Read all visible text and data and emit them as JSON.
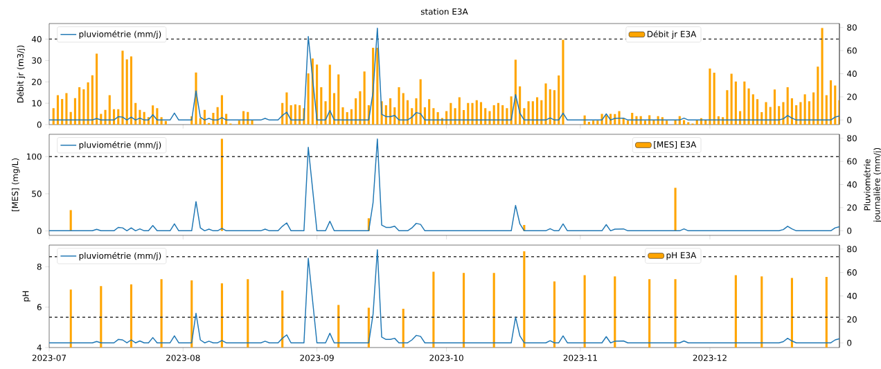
{
  "chart_data": [
    {
      "type": "bar",
      "title": "station E3A",
      "ylabel": "Débit jr (m3/j)",
      "x": [
        "2023-07-02",
        "2023-07-03",
        "2023-07-04",
        "2023-07-05",
        "2023-07-06",
        "2023-07-07",
        "2023-07-08",
        "2023-07-09",
        "2023-07-10",
        "2023-07-11",
        "2023-07-12",
        "2023-07-13",
        "2023-07-14",
        "2023-07-15",
        "2023-07-16",
        "2023-07-17",
        "2023-07-18",
        "2023-07-19",
        "2023-07-20",
        "2023-07-21",
        "2023-07-22",
        "2023-07-23",
        "2023-07-24",
        "2023-07-25",
        "2023-07-26",
        "2023-07-27",
        "2023-07-28",
        "2023-07-29",
        "2023-07-30",
        "2023-07-31",
        "2023-08-01",
        "2023-08-02",
        "2023-08-03",
        "2023-08-04",
        "2023-08-05",
        "2023-08-06",
        "2023-08-07",
        "2023-08-08",
        "2023-08-09",
        "2023-08-10",
        "2023-08-11",
        "2023-08-12",
        "2023-08-13",
        "2023-08-14",
        "2023-08-15",
        "2023-08-16",
        "2023-08-17",
        "2023-08-18",
        "2023-08-19",
        "2023-08-20",
        "2023-08-21",
        "2023-08-22",
        "2023-08-23",
        "2023-08-24",
        "2023-08-25",
        "2023-08-26",
        "2023-08-27",
        "2023-08-28",
        "2023-08-29",
        "2023-08-30",
        "2023-08-31",
        "2023-09-01",
        "2023-09-02",
        "2023-09-03",
        "2023-09-04",
        "2023-09-05",
        "2023-09-06",
        "2023-09-07",
        "2023-09-08",
        "2023-09-09",
        "2023-09-10",
        "2023-09-11",
        "2023-09-12",
        "2023-09-13",
        "2023-09-14",
        "2023-09-15",
        "2023-09-16",
        "2023-09-17",
        "2023-09-18",
        "2023-09-19",
        "2023-09-20",
        "2023-09-21",
        "2023-09-22",
        "2023-09-23",
        "2023-09-24",
        "2023-09-25",
        "2023-09-26",
        "2023-09-27",
        "2023-09-28",
        "2023-09-29",
        "2023-09-30",
        "2023-10-01",
        "2023-10-02",
        "2023-10-03",
        "2023-10-04",
        "2023-10-05",
        "2023-10-06",
        "2023-10-07",
        "2023-10-08",
        "2023-10-09",
        "2023-10-10",
        "2023-10-11",
        "2023-10-12",
        "2023-10-13",
        "2023-10-14",
        "2023-10-15",
        "2023-10-16",
        "2023-10-17",
        "2023-10-18",
        "2023-10-19",
        "2023-10-20",
        "2023-10-21",
        "2023-10-22",
        "2023-10-23",
        "2023-10-24",
        "2023-10-25",
        "2023-10-26",
        "2023-10-27",
        "2023-10-28",
        "2023-10-29",
        "2023-10-30",
        "2023-10-31",
        "2023-11-01",
        "2023-11-02",
        "2023-11-03",
        "2023-11-04",
        "2023-11-05",
        "2023-11-06",
        "2023-11-07",
        "2023-11-08",
        "2023-11-09",
        "2023-11-10",
        "2023-11-11",
        "2023-11-12",
        "2023-11-13",
        "2023-11-14",
        "2023-11-15",
        "2023-11-16",
        "2023-11-17",
        "2023-11-18",
        "2023-11-19",
        "2023-11-20",
        "2023-11-21",
        "2023-11-22",
        "2023-11-23",
        "2023-11-24",
        "2023-11-25",
        "2023-11-26",
        "2023-11-27",
        "2023-11-28",
        "2023-11-29",
        "2023-11-30",
        "2023-12-01",
        "2023-12-02",
        "2023-12-03",
        "2023-12-04",
        "2023-12-05",
        "2023-12-06",
        "2023-12-07",
        "2023-12-08",
        "2023-12-09",
        "2023-12-10",
        "2023-12-11",
        "2023-12-12",
        "2023-12-13",
        "2023-12-14",
        "2023-12-15",
        "2023-12-16",
        "2023-12-17",
        "2023-12-18",
        "2023-12-19",
        "2023-12-20",
        "2023-12-21",
        "2023-12-22",
        "2023-12-23",
        "2023-12-24",
        "2023-12-25",
        "2023-12-26",
        "2023-12-27",
        "2023-12-28",
        "2023-12-29",
        "2023-12-30",
        "2023-12-31"
      ],
      "series": [
        {
          "name": "Débit jr E3A",
          "color": "#ffa500",
          "values": [
            7.7,
            13.8,
            12.0,
            14.7,
            5.9,
            12.4,
            17.5,
            16.5,
            19.8,
            23.1,
            33.2,
            5.0,
            6.9,
            13.8,
            7.2,
            7.2,
            34.6,
            30.5,
            31.9,
            10.1,
            6.9,
            5.9,
            3.5,
            9.0,
            7.7,
            3.5,
            1.7,
            null,
            null,
            null,
            null,
            null,
            3.9,
            24.4,
            3.0,
            6.9,
            0.7,
            5.5,
            8.2,
            13.8,
            5.0,
            0.5,
            null,
            1.9,
            6.3,
            5.9,
            2.1,
            null,
            null,
            null,
            null,
            null,
            null,
            10.1,
            15.1,
            9.1,
            9.5,
            9.1,
            7.7,
            24.0,
            30.9,
            28.1,
            17.5,
            10.9,
            28.0,
            14.7,
            23.5,
            8.1,
            5.8,
            7.2,
            12.3,
            15.6,
            24.9,
            9.1,
            36.0,
            36.0,
            10.9,
            9.1,
            12.3,
            8.1,
            17.5,
            14.7,
            11.4,
            7.7,
            12.3,
            21.2,
            8.1,
            11.9,
            7.7,
            5.8,
            3.1,
            6.3,
            10.1,
            7.7,
            12.8,
            6.8,
            10.1,
            10.1,
            11.4,
            10.5,
            7.7,
            6.3,
            9.1,
            10.1,
            9.1,
            7.7,
            13.2,
            30.4,
            17.9,
            7.7,
            10.9,
            10.9,
            12.8,
            11.4,
            19.3,
            16.5,
            16.1,
            23.0,
            39.7,
            null,
            null,
            null,
            null,
            4.3,
            1.3,
            1.9,
            1.9,
            5.0,
            4.4,
            5.0,
            4.9,
            6.3,
            3.0,
            1.9,
            5.5,
            4.0,
            4.0,
            1.9,
            4.4,
            2.1,
            4.0,
            3.5,
            1.9,
            null,
            2.0,
            4.0,
            2.1,
            1.1,
            0.5,
            2.1,
            3.0,
            2.1,
            26.2,
            24.3,
            3.9,
            3.5,
            16.1,
            23.8,
            20.2,
            6.3,
            20.2,
            16.9,
            14.2,
            11.9,
            5.8,
            10.5,
            8.3,
            16.4,
            8.7,
            10.5,
            17.5,
            12.3,
            9.1,
            10.5,
            14.2,
            10.9,
            15.1,
            27.1,
            45.3,
            13.8,
            20.7,
            18.3,
            11.4
          ]
        },
        {
          "name": "pluviométrie (mm/j)",
          "type": "line",
          "axis": "y2",
          "color": "#1f77b4",
          "x": [
            "2023-07-01",
            "2023-07-11",
            "2023-07-12",
            "2023-07-13",
            "2023-07-16",
            "2023-07-17",
            "2023-07-18",
            "2023-07-19",
            "2023-07-20",
            "2023-07-21",
            "2023-07-22",
            "2023-07-23",
            "2023-07-24",
            "2023-07-25",
            "2023-07-26",
            "2023-07-29",
            "2023-07-30",
            "2023-07-31",
            "2023-08-03",
            "2023-08-04",
            "2023-08-05",
            "2023-08-06",
            "2023-08-07",
            "2023-08-08",
            "2023-08-09",
            "2023-08-10",
            "2023-08-11",
            "2023-08-19",
            "2023-08-20",
            "2023-08-21",
            "2023-08-23",
            "2023-08-24",
            "2023-08-25",
            "2023-08-26",
            "2023-08-29",
            "2023-08-30",
            "2023-08-31",
            "2023-09-01",
            "2023-09-03",
            "2023-09-04",
            "2023-09-05",
            "2023-09-13",
            "2023-09-14",
            "2023-09-15",
            "2023-09-16",
            "2023-09-17",
            "2023-09-18",
            "2023-09-19",
            "2023-09-20",
            "2023-09-22",
            "2023-09-23",
            "2023-09-24",
            "2023-09-25",
            "2023-09-26",
            "2023-10-16",
            "2023-10-17",
            "2023-10-18",
            "2023-10-19",
            "2023-10-24",
            "2023-10-25",
            "2023-10-26",
            "2023-10-27",
            "2023-10-28",
            "2023-10-29",
            "2023-11-06",
            "2023-11-07",
            "2023-11-08",
            "2023-11-09",
            "2023-11-11",
            "2023-11-12",
            "2023-11-24",
            "2023-11-25",
            "2023-11-26",
            "2023-12-17",
            "2023-12-18",
            "2023-12-19",
            "2023-12-20",
            "2023-12-21",
            "2023-12-29",
            "2023-12-30",
            "2023-12-31"
          ],
          "values": [
            0,
            0,
            1.2,
            0,
            0,
            2.9,
            2.5,
            0,
            2.5,
            0,
            1.6,
            0,
            0,
            4.5,
            0,
            0,
            6,
            0,
            0,
            25.2,
            2.5,
            0,
            1.4,
            0,
            0,
            2,
            0,
            0,
            1.4,
            0,
            0,
            3.9,
            6.8,
            0,
            0,
            72.2,
            36,
            0,
            0,
            8.2,
            0,
            0,
            24.4,
            79.4,
            4.9,
            2.9,
            2.9,
            3.9,
            0,
            0,
            2.5,
            6.4,
            5.5,
            0,
            0,
            21.9,
            5.9,
            0,
            0,
            1.8,
            0,
            0,
            5.9,
            0,
            0,
            5.3,
            0,
            1.4,
            1.6,
            0,
            0,
            1.6,
            0,
            0,
            1,
            3.9,
            1.6,
            0,
            0,
            2.5,
            3.5
          ]
        }
      ],
      "xlim": [
        "2023-07-01",
        "2023-12-31"
      ],
      "xticks": [
        "2023-07",
        "2023-08",
        "2023-09",
        "2023-10",
        "2023-11",
        "2023-12"
      ],
      "ylim": [
        0,
        47.3
      ],
      "yticks": [
        0,
        10,
        20,
        30,
        40
      ],
      "y2lim": [
        -4,
        83.4
      ],
      "y2ticks": [
        0,
        20,
        40,
        60,
        80
      ],
      "ref_lines": [
        {
          "axis": "y",
          "value": 40,
          "color": "#333333",
          "line_style": "dashed"
        }
      ],
      "legend": "top left",
      "tick_labels": "y"
    },
    {
      "type": "bar",
      "ylabel": "[MES] (mg/L)",
      "y2label": "Pluviométrie journalière (mm/j)",
      "series": [
        {
          "name": "[MES] E3A",
          "color": "#ffa500",
          "x": [
            "2023-07-06",
            "2023-08-10",
            "2023-09-13",
            "2023-10-19",
            "2023-11-23"
          ],
          "values": [
            28,
            124,
            17,
            8,
            58
          ]
        },
        {
          "name": "pluviométrie (mm/j)",
          "type": "line",
          "axis": "y2",
          "color": "#1f77b4",
          "x": [
            "2023-07-01",
            "2023-07-11",
            "2023-07-12",
            "2023-07-13",
            "2023-07-16",
            "2023-07-17",
            "2023-07-18",
            "2023-07-19",
            "2023-07-20",
            "2023-07-21",
            "2023-07-22",
            "2023-07-23",
            "2023-07-24",
            "2023-07-25",
            "2023-07-26",
            "2023-07-29",
            "2023-07-30",
            "2023-07-31",
            "2023-08-03",
            "2023-08-04",
            "2023-08-05",
            "2023-08-06",
            "2023-08-07",
            "2023-08-08",
            "2023-08-09",
            "2023-08-10",
            "2023-08-11",
            "2023-08-19",
            "2023-08-20",
            "2023-08-21",
            "2023-08-23",
            "2023-08-24",
            "2023-08-25",
            "2023-08-26",
            "2023-08-29",
            "2023-08-30",
            "2023-08-31",
            "2023-09-01",
            "2023-09-03",
            "2023-09-04",
            "2023-09-05",
            "2023-09-13",
            "2023-09-14",
            "2023-09-15",
            "2023-09-16",
            "2023-09-17",
            "2023-09-18",
            "2023-09-19",
            "2023-09-20",
            "2023-09-22",
            "2023-09-23",
            "2023-09-24",
            "2023-09-25",
            "2023-09-26",
            "2023-10-16",
            "2023-10-17",
            "2023-10-18",
            "2023-10-19",
            "2023-10-24",
            "2023-10-25",
            "2023-10-26",
            "2023-10-27",
            "2023-10-28",
            "2023-10-29",
            "2023-11-06",
            "2023-11-07",
            "2023-11-08",
            "2023-11-09",
            "2023-11-11",
            "2023-11-12",
            "2023-11-24",
            "2023-11-25",
            "2023-11-26",
            "2023-12-17",
            "2023-12-18",
            "2023-12-19",
            "2023-12-20",
            "2023-12-21",
            "2023-12-29",
            "2023-12-30",
            "2023-12-31"
          ],
          "values": [
            0,
            0,
            1.2,
            0,
            0,
            2.9,
            2.5,
            0,
            2.5,
            0,
            1.6,
            0,
            0,
            4.5,
            0,
            0,
            6,
            0,
            0,
            25.2,
            2.5,
            0,
            1.4,
            0,
            0,
            2,
            0,
            0,
            1.4,
            0,
            0,
            3.9,
            6.8,
            0,
            0,
            72.2,
            36,
            0,
            0,
            8.2,
            0,
            0,
            24.4,
            79.4,
            4.9,
            2.9,
            2.9,
            3.9,
            0,
            0,
            2.5,
            6.4,
            5.5,
            0,
            0,
            21.9,
            5.9,
            0,
            0,
            1.8,
            0,
            0,
            5.9,
            0,
            0,
            5.3,
            0,
            1.4,
            1.6,
            0,
            0,
            1.6,
            0,
            0,
            1,
            3.9,
            1.6,
            0,
            0,
            2.5,
            3.5
          ]
        }
      ],
      "xlim": [
        "2023-07-01",
        "2023-12-31"
      ],
      "xticks": [
        "2023-07",
        "2023-08",
        "2023-09",
        "2023-10",
        "2023-11",
        "2023-12"
      ],
      "ylim": [
        -6,
        130
      ],
      "yticks": [
        0,
        50,
        100
      ],
      "y2lim": [
        -4,
        83.4
      ],
      "y2ticks": [
        0,
        20,
        40,
        60,
        80
      ],
      "ref_lines": [
        {
          "axis": "y",
          "value": 100,
          "color": "#333333",
          "line_style": "dashed"
        }
      ],
      "legend": "top left",
      "tick_labels": "y"
    },
    {
      "type": "bar",
      "ylabel": "pH",
      "series": [
        {
          "name": "pH E3A",
          "color": "#ffa500",
          "x": [
            "2023-07-06",
            "2023-07-13",
            "2023-07-20",
            "2023-07-27",
            "2023-08-03",
            "2023-08-10",
            "2023-08-16",
            "2023-08-24",
            "2023-09-06",
            "2023-09-13",
            "2023-09-21",
            "2023-09-28",
            "2023-10-05",
            "2023-10-12",
            "2023-10-19",
            "2023-10-26",
            "2023-11-02",
            "2023-11-09",
            "2023-11-17",
            "2023-11-23",
            "2023-12-07",
            "2023-12-13",
            "2023-12-20",
            "2023-12-28"
          ],
          "values": [
            6.87,
            7.04,
            7.13,
            7.38,
            7.32,
            7.18,
            7.38,
            6.82,
            6.11,
            5.97,
            5.92,
            7.75,
            7.69,
            7.69,
            8.76,
            7.27,
            7.58,
            7.52,
            7.38,
            7.38,
            7.58,
            7.52,
            7.44,
            7.49
          ]
        },
        {
          "name": "pluviométrie (mm/j)",
          "type": "line",
          "axis": "y2",
          "color": "#1f77b4",
          "x": [
            "2023-07-01",
            "2023-07-11",
            "2023-07-12",
            "2023-07-13",
            "2023-07-16",
            "2023-07-17",
            "2023-07-18",
            "2023-07-19",
            "2023-07-20",
            "2023-07-21",
            "2023-07-22",
            "2023-07-23",
            "2023-07-24",
            "2023-07-25",
            "2023-07-26",
            "2023-07-29",
            "2023-07-30",
            "2023-07-31",
            "2023-08-03",
            "2023-08-04",
            "2023-08-05",
            "2023-08-06",
            "2023-08-07",
            "2023-08-08",
            "2023-08-09",
            "2023-08-10",
            "2023-08-11",
            "2023-08-19",
            "2023-08-20",
            "2023-08-21",
            "2023-08-23",
            "2023-08-24",
            "2023-08-25",
            "2023-08-26",
            "2023-08-29",
            "2023-08-30",
            "2023-08-31",
            "2023-09-01",
            "2023-09-03",
            "2023-09-04",
            "2023-09-05",
            "2023-09-13",
            "2023-09-14",
            "2023-09-15",
            "2023-09-16",
            "2023-09-17",
            "2023-09-18",
            "2023-09-19",
            "2023-09-20",
            "2023-09-22",
            "2023-09-23",
            "2023-09-24",
            "2023-09-25",
            "2023-09-26",
            "2023-10-16",
            "2023-10-17",
            "2023-10-18",
            "2023-10-19",
            "2023-10-24",
            "2023-10-25",
            "2023-10-26",
            "2023-10-27",
            "2023-10-28",
            "2023-10-29",
            "2023-11-06",
            "2023-11-07",
            "2023-11-08",
            "2023-11-09",
            "2023-11-11",
            "2023-11-12",
            "2023-11-24",
            "2023-11-25",
            "2023-11-26",
            "2023-12-17",
            "2023-12-18",
            "2023-12-19",
            "2023-12-20",
            "2023-12-21",
            "2023-12-29",
            "2023-12-30",
            "2023-12-31"
          ],
          "values": [
            0,
            0,
            1.2,
            0,
            0,
            2.9,
            2.5,
            0,
            2.5,
            0,
            1.6,
            0,
            0,
            4.5,
            0,
            0,
            6,
            0,
            0,
            25.2,
            2.5,
            0,
            1.4,
            0,
            0,
            2,
            0,
            0,
            1.4,
            0,
            0,
            3.9,
            6.8,
            0,
            0,
            72.2,
            36,
            0,
            0,
            8.2,
            0,
            0,
            24.4,
            79.4,
            4.9,
            2.9,
            2.9,
            3.9,
            0,
            0,
            2.5,
            6.4,
            5.5,
            0,
            0,
            21.9,
            5.9,
            0,
            0,
            1.8,
            0,
            0,
            5.9,
            0,
            0,
            5.3,
            0,
            1.4,
            1.6,
            0,
            0,
            1.6,
            0,
            0,
            1,
            3.9,
            1.6,
            0,
            0,
            2.5,
            3.5
          ]
        }
      ],
      "xlim": [
        "2023-07-01",
        "2023-12-31"
      ],
      "xticks": [
        "2023-07",
        "2023-08",
        "2023-09",
        "2023-10",
        "2023-11",
        "2023-12"
      ],
      "ylim": [
        4,
        9.07
      ],
      "yticks": [
        4,
        6,
        8
      ],
      "y2lim": [
        -4,
        83.4
      ],
      "y2ticks": [
        0,
        20,
        40,
        60,
        80
      ],
      "ref_lines": [
        {
          "axis": "y",
          "value": 8.5,
          "color": "#333333",
          "line_style": "dashed"
        },
        {
          "axis": "y",
          "value": 5.5,
          "color": "#333333",
          "line_style": "dashed"
        }
      ],
      "legend": "top left"
    }
  ]
}
